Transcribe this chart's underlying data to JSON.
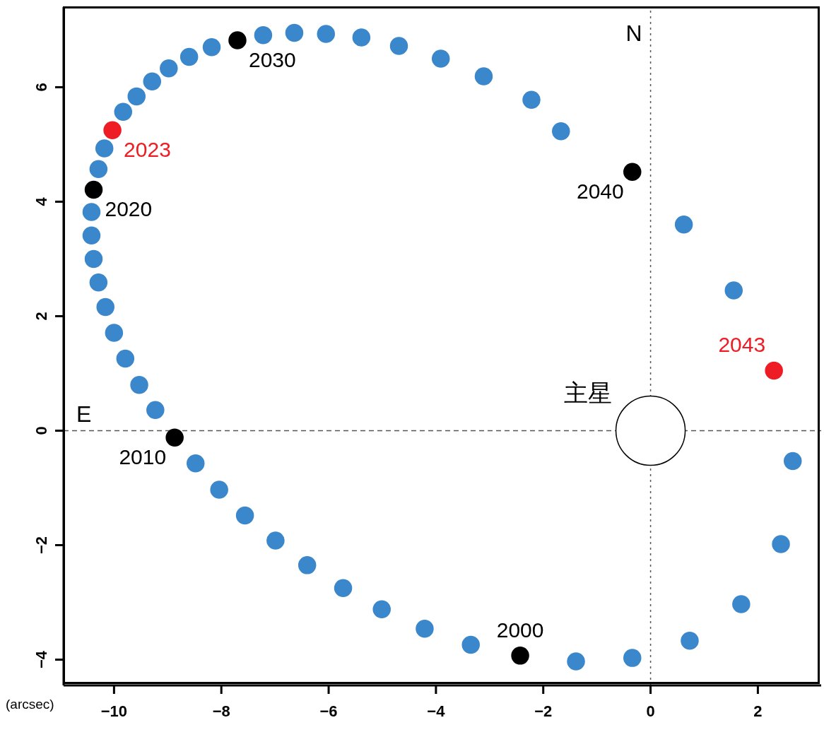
{
  "chart_data": {
    "type": "scatter",
    "xlabel": "(arcsec)",
    "marker": "circle",
    "xlim": [
      -10.94,
      3.18
    ],
    "ylim": [
      -4.45,
      7.4
    ],
    "xticks": [
      -10,
      -8,
      -6,
      -4,
      -2,
      0,
      2
    ],
    "yticks": [
      -4,
      -2,
      0,
      2,
      4,
      6
    ],
    "series": [
      {
        "color": "#3b87cc",
        "x": [
          -1.39,
          -0.34,
          0.73,
          1.69,
          2.43,
          2.65,
          1.55,
          0.62,
          -1.67,
          -2.22,
          -3.11,
          -3.91,
          -4.69,
          -5.39,
          -6.05,
          -6.64,
          -7.22,
          -8.18,
          -8.6,
          -8.98,
          -9.29,
          -9.58,
          -9.83,
          -10.18,
          -10.29,
          -10.42,
          -10.42,
          -10.38,
          -10.29,
          -10.16,
          -10.0,
          -9.79,
          -9.53,
          -9.23,
          -8.48,
          -8.04,
          -7.56,
          -6.99,
          -6.4,
          -5.73,
          -5.01,
          -4.21,
          -3.35
        ],
        "values": [
          -4.03,
          -3.97,
          -3.67,
          -3.03,
          -1.98,
          -0.53,
          2.45,
          3.6,
          5.23,
          5.78,
          6.19,
          6.5,
          6.72,
          6.87,
          6.93,
          6.95,
          6.91,
          6.7,
          6.53,
          6.33,
          6.1,
          5.84,
          5.57,
          4.93,
          4.57,
          3.82,
          3.41,
          3.0,
          2.59,
          2.16,
          1.71,
          1.26,
          0.8,
          0.36,
          -0.57,
          -1.03,
          -1.48,
          -1.92,
          -2.35,
          -2.75,
          -3.12,
          -3.46,
          -3.74
        ]
      },
      {
        "color": "#000000",
        "x": [
          -2.43,
          -8.87,
          -10.38,
          -7.7,
          -0.34
        ],
        "values": [
          -3.93,
          -0.12,
          4.21,
          6.82,
          4.52
        ]
      },
      {
        "color": "#ee1c24",
        "x": [
          -10.03,
          2.3
        ],
        "values": [
          5.25,
          1.05
        ]
      },
      {
        "type": "bubble",
        "name": "主星",
        "color": "#ffffff",
        "x": [
          0
        ],
        "values": [
          0
        ],
        "sizes": [
          1
        ]
      }
    ],
    "ref_lines": [
      {
        "axis": "x",
        "value": 0,
        "color": "#555555",
        "line_style": "dotted"
      },
      {
        "axis": "y",
        "value": 0,
        "color": "#555555",
        "line_style": "dashed"
      }
    ],
    "annotations": [
      "N",
      "E",
      {
        "text": "2000",
        "x": -2.43,
        "y": -3.93
      },
      {
        "text": "2010",
        "x": -8.87,
        "y": -0.12
      },
      {
        "text": "2020",
        "x": -10.38,
        "y": 4.21
      },
      {
        "text": "2030",
        "x": -7.7,
        "y": 6.82
      },
      {
        "text": "2040",
        "x": -0.34,
        "y": 4.52
      },
      {
        "text": "2023",
        "x": -10.03,
        "y": 5.25
      },
      {
        "text": "2043",
        "x": 2.3,
        "y": 1.05
      }
    ]
  }
}
